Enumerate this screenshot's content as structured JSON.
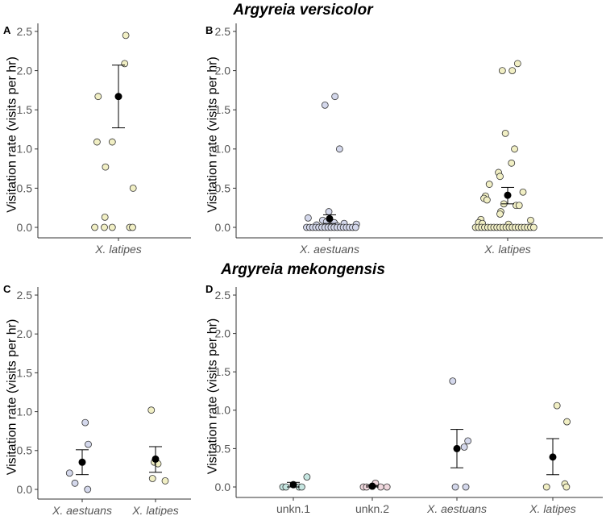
{
  "colors": {
    "X. latipes": "#f1efc4",
    "X. aestuans": "#d4d8ec",
    "unkn.1": "#c6e6e1",
    "unkn.2": "#f0d8de",
    "mean": "#000000"
  },
  "sections": [
    {
      "title": "Argyreia versicolor"
    },
    {
      "title": "Argyreia mekongensis"
    }
  ],
  "chart_data": [
    {
      "panel": "A",
      "type": "scatter",
      "title": "Argyreia versicolor",
      "ylabel": "Visitation rate (visits per hr)",
      "ylim": [
        0,
        2.5
      ],
      "yticks": [
        "0.0",
        "0.5",
        "1.0",
        "1.5",
        "2.0",
        "2.5"
      ],
      "categories": [
        "X. latipes"
      ],
      "groups": [
        {
          "name": "X. latipes",
          "mean": 1.67,
          "ci": [
            1.27,
            2.07
          ],
          "points": [
            [
              -0.36,
              1.67
            ],
            [
              -0.38,
              1.09
            ],
            [
              0.13,
              2.45
            ],
            [
              0.11,
              2.09
            ],
            [
              -0.11,
              1.09
            ],
            [
              -0.23,
              0.77
            ],
            [
              0.26,
              0.5
            ],
            [
              -0.24,
              0.13
            ],
            [
              -0.42,
              0
            ],
            [
              -0.25,
              0
            ],
            [
              -0.11,
              0
            ],
            [
              0.2,
              0
            ],
            [
              0.25,
              0
            ]
          ]
        }
      ]
    },
    {
      "panel": "B",
      "type": "scatter",
      "title": "Argyreia versicolor",
      "ylabel": "Visitation rate (visits per hr)",
      "ylim": [
        0,
        2.5
      ],
      "yticks": [
        "0.0",
        "0.5",
        "1.0",
        "1.5",
        "2.0",
        "2.5"
      ],
      "categories": [
        "X. aestuans",
        "X. latipes"
      ],
      "groups": [
        {
          "name": "X. aestuans",
          "mean": 0.11,
          "ci": [
            0.05,
            0.16
          ],
          "points": [
            [
              -0.06,
              1.56
            ],
            [
              0.07,
              1.67
            ],
            [
              0.13,
              1.0
            ],
            [
              -0.01,
              0.2
            ],
            [
              -0.28,
              0.12
            ],
            [
              -0.09,
              0.09
            ],
            [
              -0.04,
              0.07
            ],
            [
              0.06,
              0.06
            ],
            [
              0.19,
              0.05
            ],
            [
              0.35,
              0.04
            ],
            [
              -0.17,
              0.03
            ],
            [
              0.1,
              0.02
            ],
            [
              -0.3,
              0
            ],
            [
              -0.26,
              0
            ],
            [
              -0.22,
              0
            ],
            [
              -0.18,
              0
            ],
            [
              -0.14,
              0
            ],
            [
              -0.1,
              0
            ],
            [
              -0.06,
              0
            ],
            [
              -0.02,
              0
            ],
            [
              0.02,
              0
            ],
            [
              0.06,
              0
            ],
            [
              0.1,
              0
            ],
            [
              0.14,
              0
            ],
            [
              0.18,
              0
            ],
            [
              0.22,
              0
            ],
            [
              0.26,
              0
            ],
            [
              0.3,
              0
            ],
            [
              0.34,
              0
            ]
          ]
        },
        {
          "name": "X. latipes",
          "mean": 0.41,
          "ci": [
            0.3,
            0.51
          ],
          "points": [
            [
              0.13,
              2.09
            ],
            [
              0.06,
              2.0
            ],
            [
              -0.07,
              2.0
            ],
            [
              -0.03,
              1.2
            ],
            [
              0.09,
              1.0
            ],
            [
              0.05,
              0.82
            ],
            [
              -0.12,
              0.7
            ],
            [
              -0.1,
              0.65
            ],
            [
              -0.24,
              0.55
            ],
            [
              -0.29,
              0.4
            ],
            [
              -0.31,
              0.37
            ],
            [
              -0.27,
              0.35
            ],
            [
              0.2,
              0.45
            ],
            [
              -0.05,
              0.3
            ],
            [
              0.11,
              0.28
            ],
            [
              0.15,
              0.28
            ],
            [
              -0.09,
              0.2
            ],
            [
              -0.1,
              0.17
            ],
            [
              -0.35,
              0.1
            ],
            [
              0.3,
              0.09
            ],
            [
              -0.38,
              0.06
            ],
            [
              -0.33,
              0.05
            ],
            [
              0.01,
              0.04
            ],
            [
              -0.42,
              0
            ],
            [
              -0.38,
              0
            ],
            [
              -0.34,
              0
            ],
            [
              -0.3,
              0
            ],
            [
              -0.26,
              0
            ],
            [
              -0.22,
              0
            ],
            [
              -0.18,
              0
            ],
            [
              -0.14,
              0
            ],
            [
              -0.1,
              0
            ],
            [
              -0.06,
              0
            ],
            [
              -0.02,
              0
            ],
            [
              0.02,
              0
            ],
            [
              0.06,
              0
            ],
            [
              0.1,
              0
            ],
            [
              0.14,
              0
            ],
            [
              0.18,
              0
            ],
            [
              0.22,
              0
            ],
            [
              0.26,
              0
            ],
            [
              0.3,
              0
            ],
            [
              0.34,
              0
            ]
          ]
        }
      ]
    },
    {
      "panel": "C",
      "type": "scatter",
      "title": "Argyreia mekongensis",
      "ylabel": "Visitation rate (visits per hr)",
      "ylim": [
        0,
        2.5
      ],
      "yticks": [
        "0.0",
        "0.5",
        "1.0",
        "1.5",
        "2.0",
        "2.5"
      ],
      "categories": [
        "X. aestuans",
        "X. latipes"
      ],
      "groups": [
        {
          "name": "X. aestuans",
          "mean": 0.35,
          "ci": [
            0.19,
            0.51
          ],
          "points": [
            [
              -0.21,
              0.21
            ],
            [
              -0.12,
              0.08
            ],
            [
              0.05,
              0.86
            ],
            [
              0.1,
              0.58
            ],
            [
              0.09,
              0.0
            ]
          ]
        },
        {
          "name": "X. latipes",
          "mean": 0.39,
          "ci": [
            0.22,
            0.55
          ],
          "points": [
            [
              -0.07,
              1.02
            ],
            [
              -0.05,
              0.14
            ],
            [
              -0.02,
              0.35
            ],
            [
              0.04,
              0.33
            ],
            [
              0.16,
              0.11
            ]
          ]
        }
      ]
    },
    {
      "panel": "D",
      "type": "scatter",
      "title": "Argyreia mekongensis",
      "ylabel": "Visitation rate (visits per hr)",
      "ylim": [
        0,
        2.5
      ],
      "yticks": [
        "0.0",
        "0.5",
        "1.0",
        "1.5",
        "2.0",
        "2.5"
      ],
      "categories": [
        "unkn.1",
        "unkn.2",
        "X. aestuans",
        "X. latipes"
      ],
      "groups": [
        {
          "name": "unkn.1",
          "mean": 0.03,
          "ci": [
            0.0,
            0.06
          ],
          "points": [
            [
              -0.2,
              0
            ],
            [
              -0.14,
              0
            ],
            [
              0.11,
              0
            ],
            [
              0.16,
              0
            ],
            [
              0.26,
              0.13
            ]
          ]
        },
        {
          "name": "unkn.2",
          "mean": 0.01,
          "ci": [
            0.0,
            0.02
          ],
          "points": [
            [
              -0.17,
              0
            ],
            [
              -0.11,
              0
            ],
            [
              0.06,
              0.05
            ],
            [
              0.16,
              0
            ],
            [
              0.28,
              0
            ]
          ]
        },
        {
          "name": "X. aestuans",
          "mean": 0.5,
          "ci": [
            0.25,
            0.75
          ],
          "points": [
            [
              -0.08,
              1.38
            ],
            [
              -0.03,
              0
            ],
            [
              0.14,
              0.52
            ],
            [
              0.21,
              0.6
            ],
            [
              0.17,
              0
            ]
          ]
        },
        {
          "name": "X. latipes",
          "mean": 0.39,
          "ci": [
            0.16,
            0.63
          ],
          "points": [
            [
              -0.12,
              0
            ],
            [
              0.08,
              1.06
            ],
            [
              0.27,
              0.85
            ],
            [
              0.23,
              0.04
            ],
            [
              0.26,
              0
            ]
          ]
        }
      ]
    }
  ]
}
